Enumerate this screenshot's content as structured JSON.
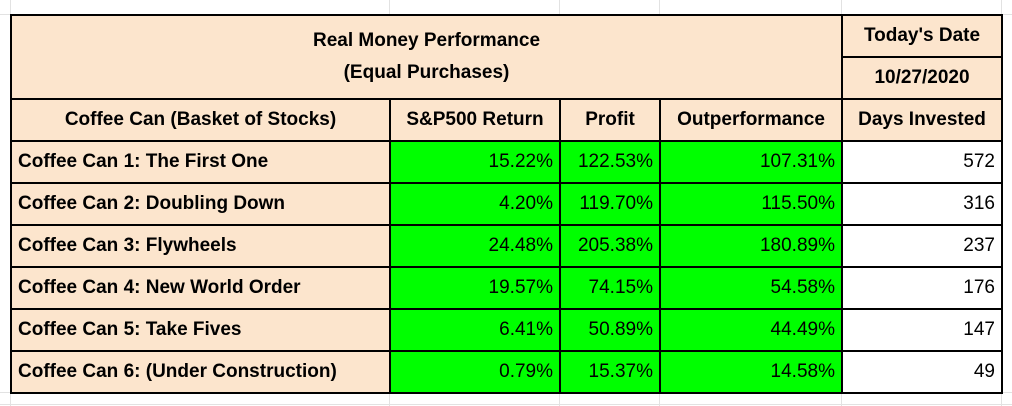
{
  "sheet": {
    "title_line1": "Real Money Performance",
    "title_line2": "(Equal Purchases)",
    "date_label": "Today's Date",
    "date_value": "10/27/2020",
    "headers": [
      "Coffee Can (Basket of Stocks)",
      "S&P500 Return",
      "Profit",
      "Outperformance",
      "Days Invested"
    ],
    "rows": [
      {
        "name": "Coffee Can 1: The First One",
        "sp500": "15.22%",
        "profit": "122.53%",
        "outperf": "107.31%",
        "days": "572"
      },
      {
        "name": "Coffee Can 2: Doubling Down",
        "sp500": "4.20%",
        "profit": "119.70%",
        "outperf": "115.50%",
        "days": "316"
      },
      {
        "name": "Coffee Can 3: Flywheels",
        "sp500": "24.48%",
        "profit": "205.38%",
        "outperf": "180.89%",
        "days": "237"
      },
      {
        "name": "Coffee Can 4: New World Order",
        "sp500": "19.57%",
        "profit": "74.15%",
        "outperf": "54.58%",
        "days": "176"
      },
      {
        "name": "Coffee Can 5: Take Fives",
        "sp500": "6.41%",
        "profit": "50.89%",
        "outperf": "44.49%",
        "days": "147"
      },
      {
        "name": "Coffee Can 6: (Under Construction)",
        "sp500": "0.79%",
        "profit": "15.37%",
        "outperf": "14.58%",
        "days": "49"
      }
    ],
    "colors": {
      "header_bg": "#fce5cd",
      "data_bg": "#00ff00",
      "border": "#000000"
    }
  }
}
